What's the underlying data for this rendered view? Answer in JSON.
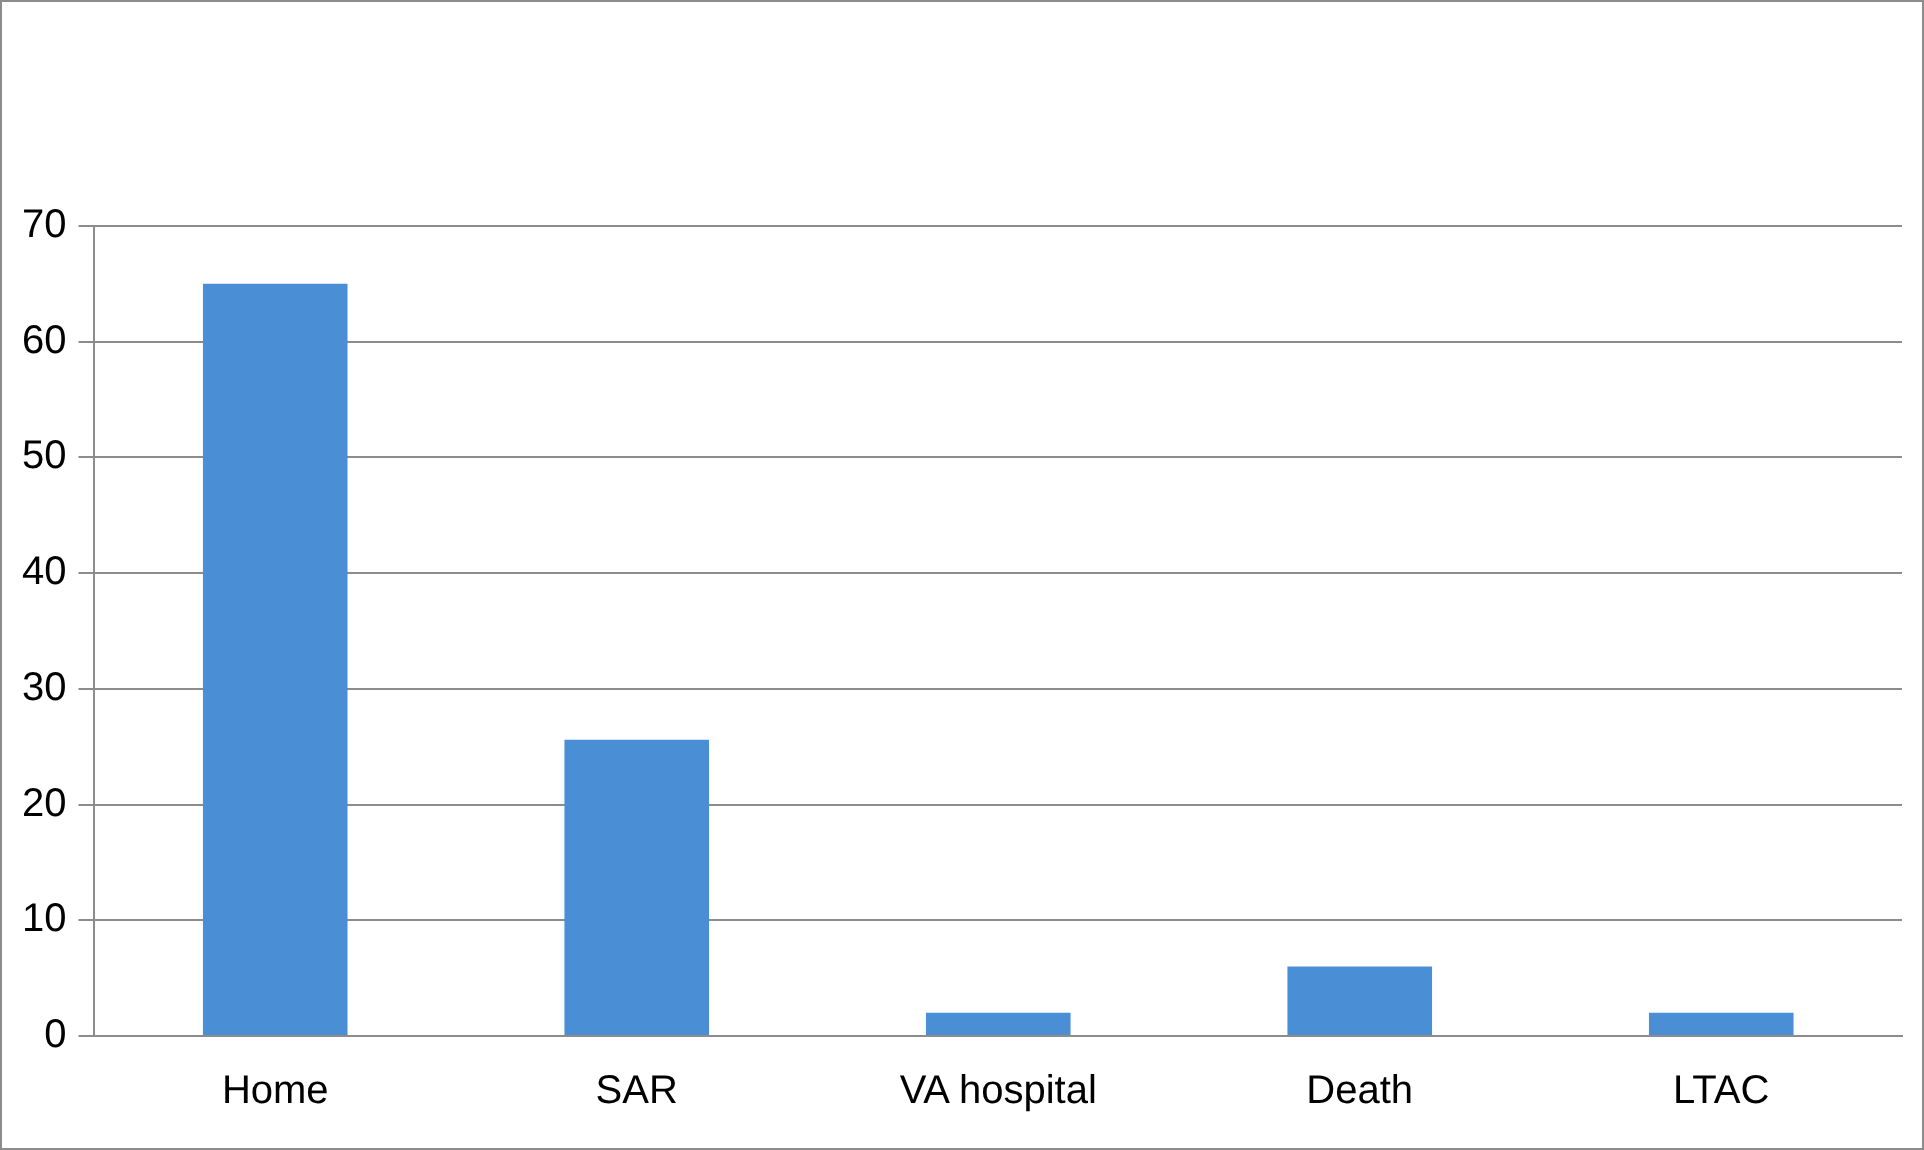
{
  "chart_data": {
    "type": "bar",
    "categories": [
      "Home",
      "SAR",
      "VA hospital",
      "Death",
      "LTAC"
    ],
    "values": [
      65,
      25.6,
      2,
      6,
      2
    ],
    "color": "#4a8fd6",
    "ylim": [
      0,
      70
    ],
    "yticks": [
      0,
      10,
      20,
      30,
      40,
      50,
      60,
      70
    ],
    "grid": "y"
  }
}
